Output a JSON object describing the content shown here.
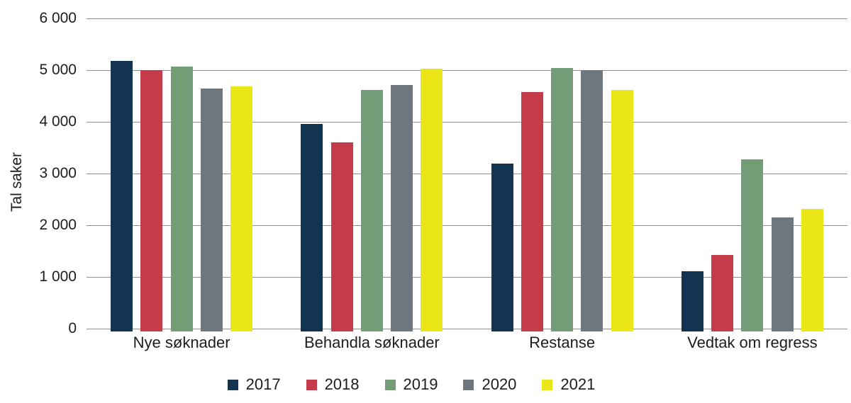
{
  "chart_data": {
    "type": "bar",
    "title": "",
    "ylabel": "Tal saker",
    "xlabel": "",
    "ylim": [
      0,
      6000
    ],
    "ytick_step": 1000,
    "yticks": [
      "6 000",
      "5 000",
      "4 000",
      "3 000",
      "2 000",
      "1 000",
      "0"
    ],
    "grid": true,
    "gridline_color": "#8f8f8f",
    "legend_position": "bottom",
    "categories": [
      "Nye søknader",
      "Behandla søknader",
      "Restanse",
      "Vedtak om regress"
    ],
    "series": [
      {
        "name": "2017",
        "color": "#133450",
        "values": [
          5180,
          3960,
          3190,
          1110
        ]
      },
      {
        "name": "2018",
        "color": "#c63b49",
        "values": [
          5000,
          3600,
          4570,
          1430
        ]
      },
      {
        "name": "2019",
        "color": "#739d77",
        "values": [
          5070,
          4610,
          5040,
          3280
        ]
      },
      {
        "name": "2020",
        "color": "#6e777e",
        "values": [
          4650,
          4710,
          5000,
          2150
        ]
      },
      {
        "name": "2021",
        "color": "#ebe617",
        "values": [
          4680,
          5030,
          4610,
          2320
        ]
      }
    ]
  }
}
